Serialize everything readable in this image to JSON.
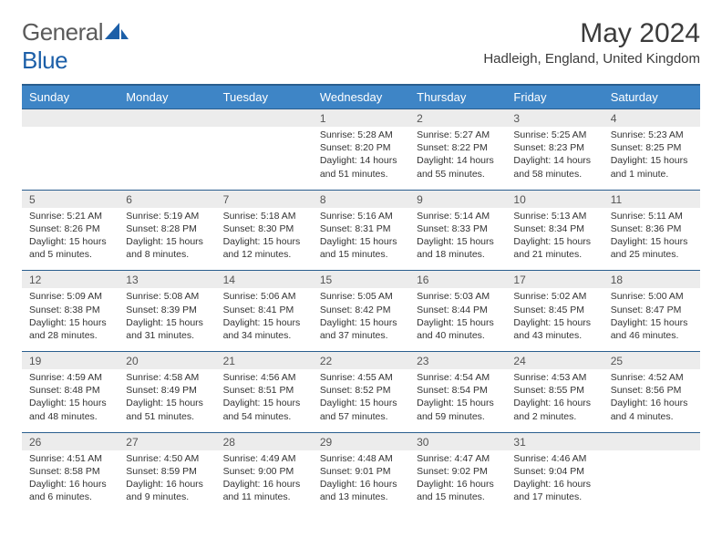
{
  "logo": {
    "text1": "General",
    "text2": "Blue"
  },
  "title": "May 2024",
  "location": "Hadleigh, England, United Kingdom",
  "colors": {
    "header_bg": "#3e85c6",
    "header_border": "#2a5e8e",
    "day_row_bg": "#ececec",
    "brand_blue": "#1c5fa8",
    "brand_gray": "#5b5b5b"
  },
  "weekdays": [
    "Sunday",
    "Monday",
    "Tuesday",
    "Wednesday",
    "Thursday",
    "Friday",
    "Saturday"
  ],
  "weeks": [
    {
      "days": [
        "",
        "",
        "",
        "1",
        "2",
        "3",
        "4"
      ],
      "info": [
        null,
        null,
        null,
        {
          "sunrise": "Sunrise: 5:28 AM",
          "sunset": "Sunset: 8:20 PM",
          "daylight": "Daylight: 14 hours and 51 minutes."
        },
        {
          "sunrise": "Sunrise: 5:27 AM",
          "sunset": "Sunset: 8:22 PM",
          "daylight": "Daylight: 14 hours and 55 minutes."
        },
        {
          "sunrise": "Sunrise: 5:25 AM",
          "sunset": "Sunset: 8:23 PM",
          "daylight": "Daylight: 14 hours and 58 minutes."
        },
        {
          "sunrise": "Sunrise: 5:23 AM",
          "sunset": "Sunset: 8:25 PM",
          "daylight": "Daylight: 15 hours and 1 minute."
        }
      ]
    },
    {
      "days": [
        "5",
        "6",
        "7",
        "8",
        "9",
        "10",
        "11"
      ],
      "info": [
        {
          "sunrise": "Sunrise: 5:21 AM",
          "sunset": "Sunset: 8:26 PM",
          "daylight": "Daylight: 15 hours and 5 minutes."
        },
        {
          "sunrise": "Sunrise: 5:19 AM",
          "sunset": "Sunset: 8:28 PM",
          "daylight": "Daylight: 15 hours and 8 minutes."
        },
        {
          "sunrise": "Sunrise: 5:18 AM",
          "sunset": "Sunset: 8:30 PM",
          "daylight": "Daylight: 15 hours and 12 minutes."
        },
        {
          "sunrise": "Sunrise: 5:16 AM",
          "sunset": "Sunset: 8:31 PM",
          "daylight": "Daylight: 15 hours and 15 minutes."
        },
        {
          "sunrise": "Sunrise: 5:14 AM",
          "sunset": "Sunset: 8:33 PM",
          "daylight": "Daylight: 15 hours and 18 minutes."
        },
        {
          "sunrise": "Sunrise: 5:13 AM",
          "sunset": "Sunset: 8:34 PM",
          "daylight": "Daylight: 15 hours and 21 minutes."
        },
        {
          "sunrise": "Sunrise: 5:11 AM",
          "sunset": "Sunset: 8:36 PM",
          "daylight": "Daylight: 15 hours and 25 minutes."
        }
      ]
    },
    {
      "days": [
        "12",
        "13",
        "14",
        "15",
        "16",
        "17",
        "18"
      ],
      "info": [
        {
          "sunrise": "Sunrise: 5:09 AM",
          "sunset": "Sunset: 8:38 PM",
          "daylight": "Daylight: 15 hours and 28 minutes."
        },
        {
          "sunrise": "Sunrise: 5:08 AM",
          "sunset": "Sunset: 8:39 PM",
          "daylight": "Daylight: 15 hours and 31 minutes."
        },
        {
          "sunrise": "Sunrise: 5:06 AM",
          "sunset": "Sunset: 8:41 PM",
          "daylight": "Daylight: 15 hours and 34 minutes."
        },
        {
          "sunrise": "Sunrise: 5:05 AM",
          "sunset": "Sunset: 8:42 PM",
          "daylight": "Daylight: 15 hours and 37 minutes."
        },
        {
          "sunrise": "Sunrise: 5:03 AM",
          "sunset": "Sunset: 8:44 PM",
          "daylight": "Daylight: 15 hours and 40 minutes."
        },
        {
          "sunrise": "Sunrise: 5:02 AM",
          "sunset": "Sunset: 8:45 PM",
          "daylight": "Daylight: 15 hours and 43 minutes."
        },
        {
          "sunrise": "Sunrise: 5:00 AM",
          "sunset": "Sunset: 8:47 PM",
          "daylight": "Daylight: 15 hours and 46 minutes."
        }
      ]
    },
    {
      "days": [
        "19",
        "20",
        "21",
        "22",
        "23",
        "24",
        "25"
      ],
      "info": [
        {
          "sunrise": "Sunrise: 4:59 AM",
          "sunset": "Sunset: 8:48 PM",
          "daylight": "Daylight: 15 hours and 48 minutes."
        },
        {
          "sunrise": "Sunrise: 4:58 AM",
          "sunset": "Sunset: 8:49 PM",
          "daylight": "Daylight: 15 hours and 51 minutes."
        },
        {
          "sunrise": "Sunrise: 4:56 AM",
          "sunset": "Sunset: 8:51 PM",
          "daylight": "Daylight: 15 hours and 54 minutes."
        },
        {
          "sunrise": "Sunrise: 4:55 AM",
          "sunset": "Sunset: 8:52 PM",
          "daylight": "Daylight: 15 hours and 57 minutes."
        },
        {
          "sunrise": "Sunrise: 4:54 AM",
          "sunset": "Sunset: 8:54 PM",
          "daylight": "Daylight: 15 hours and 59 minutes."
        },
        {
          "sunrise": "Sunrise: 4:53 AM",
          "sunset": "Sunset: 8:55 PM",
          "daylight": "Daylight: 16 hours and 2 minutes."
        },
        {
          "sunrise": "Sunrise: 4:52 AM",
          "sunset": "Sunset: 8:56 PM",
          "daylight": "Daylight: 16 hours and 4 minutes."
        }
      ]
    },
    {
      "days": [
        "26",
        "27",
        "28",
        "29",
        "30",
        "31",
        ""
      ],
      "info": [
        {
          "sunrise": "Sunrise: 4:51 AM",
          "sunset": "Sunset: 8:58 PM",
          "daylight": "Daylight: 16 hours and 6 minutes."
        },
        {
          "sunrise": "Sunrise: 4:50 AM",
          "sunset": "Sunset: 8:59 PM",
          "daylight": "Daylight: 16 hours and 9 minutes."
        },
        {
          "sunrise": "Sunrise: 4:49 AM",
          "sunset": "Sunset: 9:00 PM",
          "daylight": "Daylight: 16 hours and 11 minutes."
        },
        {
          "sunrise": "Sunrise: 4:48 AM",
          "sunset": "Sunset: 9:01 PM",
          "daylight": "Daylight: 16 hours and 13 minutes."
        },
        {
          "sunrise": "Sunrise: 4:47 AM",
          "sunset": "Sunset: 9:02 PM",
          "daylight": "Daylight: 16 hours and 15 minutes."
        },
        {
          "sunrise": "Sunrise: 4:46 AM",
          "sunset": "Sunset: 9:04 PM",
          "daylight": "Daylight: 16 hours and 17 minutes."
        },
        null
      ]
    }
  ]
}
